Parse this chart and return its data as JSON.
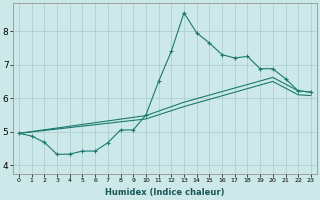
{
  "xlabel": "Humidex (Indice chaleur)",
  "background_color": "#cce8e8",
  "line_color": "#1a7a6e",
  "grid_color": "#aacccc",
  "xlim": [
    -0.5,
    23.5
  ],
  "ylim": [
    3.75,
    8.85
  ],
  "xticks": [
    0,
    1,
    2,
    3,
    4,
    5,
    6,
    7,
    8,
    9,
    10,
    11,
    12,
    13,
    14,
    15,
    16,
    17,
    18,
    19,
    20,
    21,
    22,
    23
  ],
  "yticks": [
    4,
    5,
    6,
    7,
    8
  ],
  "line1_x": [
    0,
    1,
    2,
    3,
    4,
    5,
    6,
    7,
    8,
    9,
    10,
    11,
    12,
    13,
    14,
    15,
    16,
    17,
    18,
    19,
    20,
    21,
    22,
    23
  ],
  "line1_y": [
    4.95,
    4.87,
    4.68,
    4.32,
    4.33,
    4.42,
    4.42,
    4.67,
    5.05,
    5.05,
    5.5,
    6.5,
    7.4,
    8.55,
    7.95,
    7.65,
    7.3,
    7.2,
    7.25,
    6.88,
    6.88,
    6.58,
    6.22,
    6.18
  ],
  "line2_x": [
    0,
    10,
    13,
    20,
    22,
    23
  ],
  "line2_y": [
    4.95,
    5.48,
    5.88,
    6.62,
    6.22,
    6.18
  ],
  "line3_x": [
    0,
    10,
    13,
    20,
    22,
    23
  ],
  "line3_y": [
    4.95,
    5.38,
    5.75,
    6.5,
    6.1,
    6.08
  ]
}
